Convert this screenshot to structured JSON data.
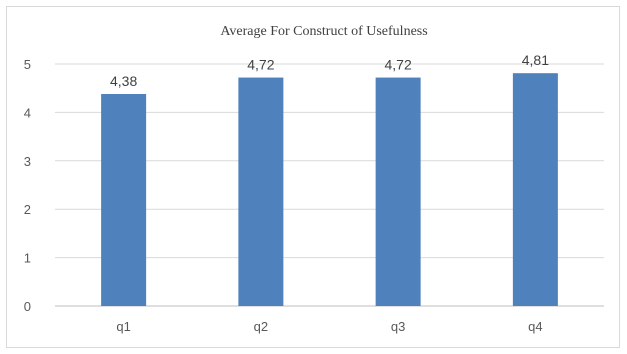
{
  "chart_data": {
    "type": "bar",
    "title": "Average For Construct of Usefulness",
    "categories": [
      "q1",
      "q2",
      "q3",
      "q4"
    ],
    "values": [
      4.38,
      4.72,
      4.72,
      4.81
    ],
    "data_labels": [
      "4,38",
      "4,72",
      "4,72",
      "4,81"
    ],
    "ylim": [
      0,
      5
    ],
    "yticks": [
      "0",
      "1",
      "2",
      "3",
      "4",
      "5"
    ],
    "grid": true,
    "xlabel": "",
    "ylabel": "",
    "bar_color": "#4f81bd"
  }
}
